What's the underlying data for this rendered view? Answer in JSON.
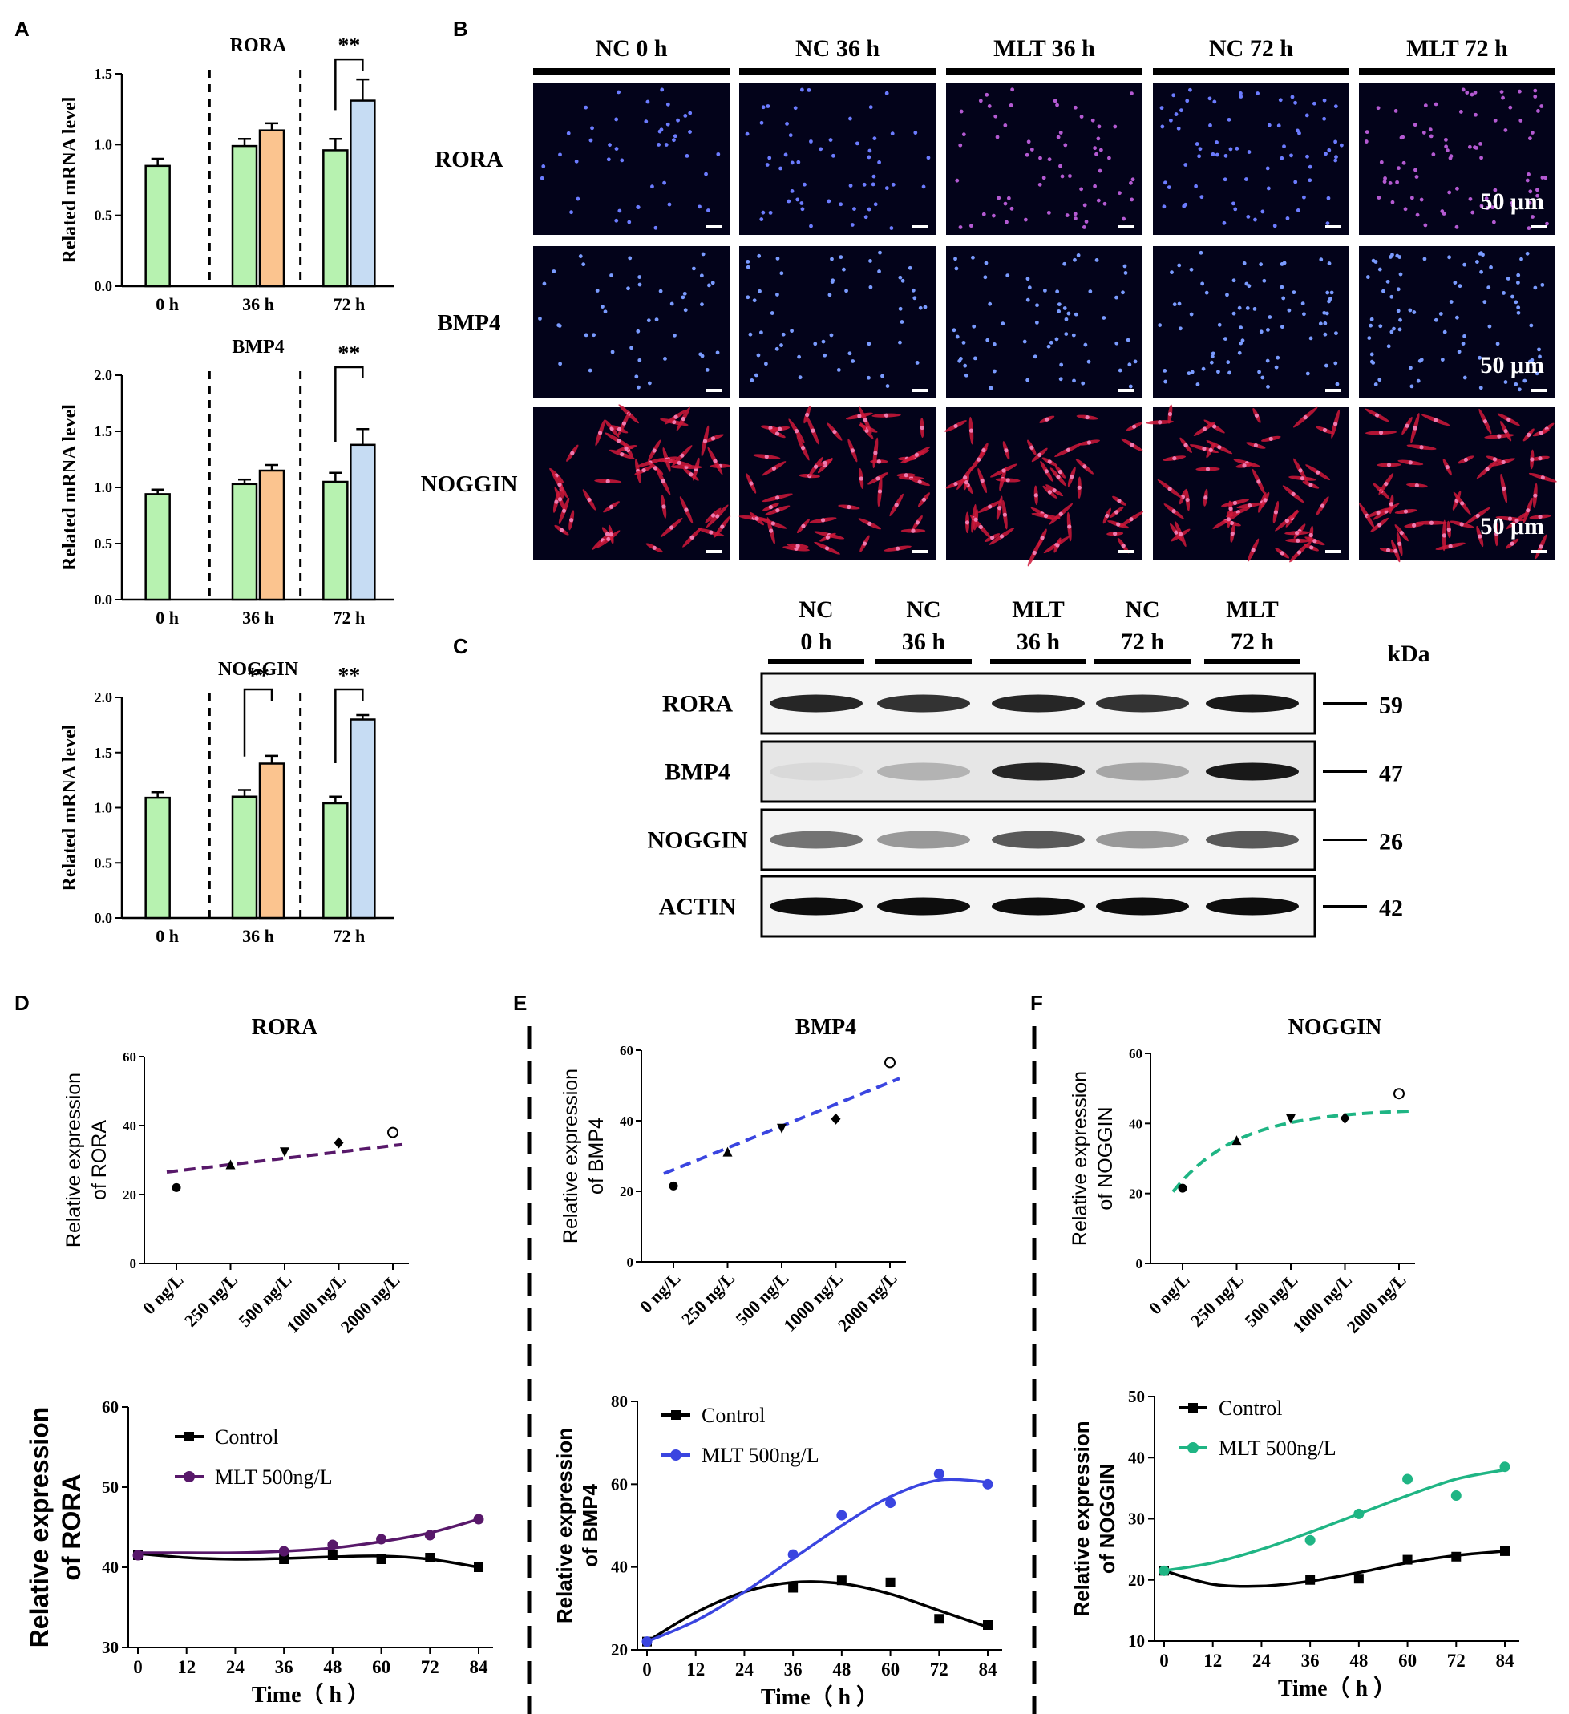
{
  "panels": {
    "A": "A",
    "B": "B",
    "C": "C",
    "D": "D",
    "E": "E",
    "F": "F"
  },
  "panel_a": {
    "ylabel": "Related  mRNA  level",
    "significance": "**",
    "groups": [
      "0 h",
      "36 h",
      "72 h"
    ]
  },
  "panel_b": {
    "headers": [
      "NC 0 h",
      "NC 36 h",
      "MLT 36 h",
      "NC 72 h",
      "MLT 72 h"
    ],
    "rows": [
      "RORA",
      "BMP4",
      "NOGGIN"
    ],
    "scalebar": "50 μm"
  },
  "panel_c": {
    "lanes": [
      [
        "NC",
        "0 h"
      ],
      [
        "NC",
        "36 h"
      ],
      [
        "MLT",
        "36 h"
      ],
      [
        "NC",
        "72 h"
      ],
      [
        "MLT",
        "72 h"
      ]
    ],
    "proteins": [
      "RORA",
      "BMP4",
      "NOGGIN",
      "ACTIN"
    ],
    "kda_label": "kDa",
    "kda": [
      "59",
      "47",
      "26",
      "42"
    ]
  },
  "dose_ylabel_prefix": "Relative expression",
  "time_ylabel_prefix": "Relative expression",
  "time_xlabel": "Time（ h ）",
  "legend": {
    "control": "Control",
    "mlt": "MLT 500ng/L"
  },
  "colors": {
    "green_bar": "#b7f2b0",
    "orange_bar": "#fbc48f",
    "blue_bar": "#c6dcf3",
    "purple": "#58186a",
    "blue": "#3a45e0",
    "teal": "#1fb584",
    "black": "#000000"
  },
  "chart_data": [
    {
      "id": "A1",
      "type": "bar",
      "title": "RORA",
      "xlabel": "",
      "ylabel": "Related  mRNA  level",
      "ylim": [
        0,
        1.5
      ],
      "yticks": [
        "0.0",
        "0.5",
        "1.0",
        "1.5"
      ],
      "categories": [
        "0 h",
        "36 h",
        "72 h"
      ],
      "series": [
        {
          "name": "NC",
          "values": [
            0.85,
            0.99,
            0.96
          ],
          "errors": [
            0.05,
            0.05,
            0.08
          ]
        },
        {
          "name": "MLT",
          "values": [
            null,
            1.1,
            1.31
          ],
          "errors": [
            null,
            0.05,
            0.15
          ]
        }
      ],
      "significance": [
        {
          "group": "72 h",
          "label": "**"
        }
      ]
    },
    {
      "id": "A2",
      "type": "bar",
      "title": "BMP4",
      "xlabel": "",
      "ylabel": "Related  mRNA  level",
      "ylim": [
        0,
        2.0
      ],
      "yticks": [
        "0.0",
        "0.5",
        "1.0",
        "1.5",
        "2.0"
      ],
      "categories": [
        "0 h",
        "36 h",
        "72 h"
      ],
      "series": [
        {
          "name": "NC",
          "values": [
            0.94,
            1.03,
            1.05
          ],
          "errors": [
            0.04,
            0.04,
            0.08
          ]
        },
        {
          "name": "MLT",
          "values": [
            null,
            1.15,
            1.38
          ],
          "errors": [
            null,
            0.05,
            0.14
          ]
        }
      ],
      "significance": [
        {
          "group": "72 h",
          "label": "**"
        }
      ]
    },
    {
      "id": "A3",
      "type": "bar",
      "title": "NOGGIN",
      "xlabel": "",
      "ylabel": "Related  mRNA  level",
      "ylim": [
        0,
        2.0
      ],
      "yticks": [
        "0.0",
        "0.5",
        "1.0",
        "1.5",
        "2.0"
      ],
      "categories": [
        "0 h",
        "36 h",
        "72 h"
      ],
      "series": [
        {
          "name": "NC",
          "values": [
            1.09,
            1.1,
            1.04
          ],
          "errors": [
            0.05,
            0.06,
            0.06
          ]
        },
        {
          "name": "MLT",
          "values": [
            null,
            1.4,
            1.8
          ],
          "errors": [
            null,
            0.07,
            0.04
          ]
        }
      ],
      "significance": [
        {
          "group": "36 h",
          "label": "**"
        },
        {
          "group": "72 h",
          "label": "**"
        }
      ]
    },
    {
      "id": "D1",
      "type": "scatter",
      "title": "RORA",
      "ylabel_gene": "RORA",
      "categories": [
        "0 ng/L",
        "250 ng/L",
        "500 ng/L",
        "1000 ng/L",
        "2000 ng/L"
      ],
      "values": [
        22,
        28.5,
        32.5,
        35,
        38
      ],
      "ylim": [
        0,
        60
      ],
      "yticks": [
        0,
        20,
        40,
        60
      ],
      "fit": {
        "shape": "linear",
        "color": "#58186a",
        "y_start": 26.5,
        "y_end": 34.5
      }
    },
    {
      "id": "E1",
      "type": "scatter",
      "title": "BMP4",
      "ylabel_gene": "BMP4",
      "categories": [
        "0 ng/L",
        "250 ng/L",
        "500 ng/L",
        "1000 ng/L",
        "2000 ng/L"
      ],
      "values": [
        21.5,
        31,
        38,
        40.5,
        56.5
      ],
      "ylim": [
        0,
        60
      ],
      "yticks": [
        0,
        20,
        40,
        60
      ],
      "fit": {
        "shape": "linear",
        "color": "#3a45e0",
        "y_start": 25,
        "y_end": 52
      }
    },
    {
      "id": "F1",
      "type": "scatter",
      "title": "NOGGIN",
      "ylabel_gene": "NOGGIN",
      "categories": [
        "0 ng/L",
        "250 ng/L",
        "500 ng/L",
        "1000 ng/L",
        "2000 ng/L"
      ],
      "values": [
        21.5,
        35,
        41.5,
        41.5,
        48.5
      ],
      "ylim": [
        0,
        60
      ],
      "yticks": [
        0,
        20,
        40,
        60
      ],
      "fit": {
        "shape": "saturating",
        "color": "#1fb584",
        "y_start": 20.5,
        "y_end": 43.5
      }
    },
    {
      "id": "D2",
      "type": "line",
      "ylabel_gene": "RORA",
      "xlabel": "Time（ h ）",
      "x": [
        0,
        36,
        48,
        60,
        72,
        84
      ],
      "xticks": [
        0,
        12,
        24,
        36,
        48,
        60,
        72,
        84
      ],
      "ylim": [
        30,
        60
      ],
      "yticks": [
        30,
        40,
        50,
        60
      ],
      "series": [
        {
          "name": "Control",
          "values": [
            41.5,
            41,
            41.5,
            41,
            41.2,
            40
          ],
          "color": "#000000",
          "curve": [
            [
              0,
              41.7
            ],
            [
              12,
              41.2
            ],
            [
              24,
              41
            ],
            [
              36,
              41.1
            ],
            [
              48,
              41.3
            ],
            [
              60,
              41.4
            ],
            [
              72,
              41
            ],
            [
              84,
              40
            ]
          ]
        },
        {
          "name": "MLT 500ng/L",
          "values": [
            41.5,
            42,
            42.8,
            43.5,
            44,
            46
          ],
          "color": "#58186a",
          "curve": [
            [
              0,
              41.8
            ],
            [
              12,
              41.8
            ],
            [
              24,
              41.8
            ],
            [
              36,
              42
            ],
            [
              48,
              42.4
            ],
            [
              60,
              43.2
            ],
            [
              72,
              44.3
            ],
            [
              84,
              46
            ]
          ]
        }
      ]
    },
    {
      "id": "E2",
      "type": "line",
      "ylabel_gene": "BMP4",
      "xlabel": "Time（ h ）",
      "x": [
        0,
        36,
        48,
        60,
        72,
        84
      ],
      "xticks": [
        0,
        12,
        24,
        36,
        48,
        60,
        72,
        84
      ],
      "ylim": [
        20,
        80
      ],
      "yticks": [
        20,
        40,
        60,
        80
      ],
      "series": [
        {
          "name": "Control",
          "values": [
            22,
            35,
            36.8,
            36.3,
            27.5,
            26
          ],
          "color": "#000000",
          "curve": [
            [
              0,
              22
            ],
            [
              12,
              29
            ],
            [
              24,
              34
            ],
            [
              36,
              36.3
            ],
            [
              48,
              36
            ],
            [
              60,
              33.5
            ],
            [
              72,
              29.5
            ],
            [
              84,
              25.5
            ]
          ]
        },
        {
          "name": "MLT 500ng/L",
          "values": [
            22,
            43,
            52.5,
            55.5,
            62.5,
            60
          ],
          "color": "#3a45e0",
          "curve": [
            [
              0,
              22
            ],
            [
              12,
              27
            ],
            [
              24,
              34
            ],
            [
              36,
              42
            ],
            [
              48,
              50
            ],
            [
              60,
              57
            ],
            [
              72,
              61
            ],
            [
              84,
              60.5
            ]
          ]
        }
      ]
    },
    {
      "id": "F2",
      "type": "line",
      "ylabel_gene": "NOGGIN",
      "xlabel": "Time（ h ）",
      "x": [
        0,
        36,
        48,
        60,
        72,
        84
      ],
      "xticks": [
        0,
        12,
        24,
        36,
        48,
        60,
        72,
        84
      ],
      "ylim": [
        10,
        50
      ],
      "yticks": [
        10,
        20,
        30,
        40,
        50
      ],
      "series": [
        {
          "name": "Control",
          "values": [
            21.5,
            20,
            20.2,
            23.3,
            23.8,
            24.7
          ],
          "color": "#000000",
          "curve": [
            [
              0,
              21.5
            ],
            [
              12,
              19.3
            ],
            [
              24,
              19
            ],
            [
              36,
              19.8
            ],
            [
              48,
              21.2
            ],
            [
              60,
              22.8
            ],
            [
              72,
              24
            ],
            [
              84,
              24.7
            ]
          ]
        },
        {
          "name": "MLT 500ng/L",
          "values": [
            21.5,
            26.5,
            30.8,
            36.5,
            33.8,
            38.5
          ],
          "color": "#1fb584",
          "curve": [
            [
              0,
              21.5
            ],
            [
              12,
              22.8
            ],
            [
              24,
              25
            ],
            [
              36,
              27.8
            ],
            [
              48,
              30.8
            ],
            [
              60,
              33.8
            ],
            [
              72,
              36.5
            ],
            [
              84,
              38
            ]
          ]
        }
      ]
    }
  ]
}
